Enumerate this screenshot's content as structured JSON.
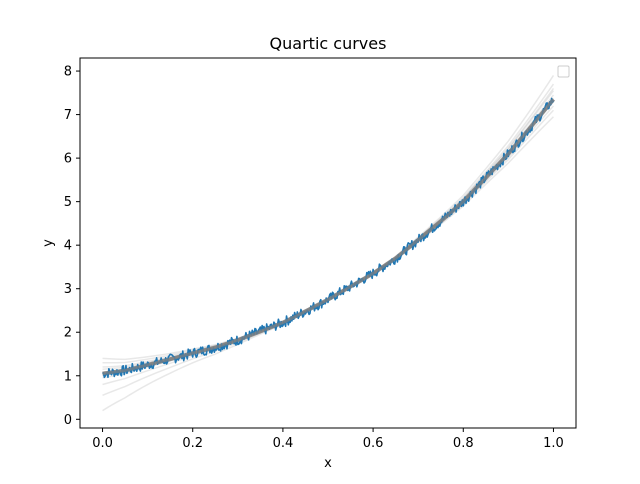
{
  "chart_data": {
    "type": "line",
    "title": "Quartic curves",
    "xlabel": "x",
    "ylabel": "y",
    "xlim": [
      -0.05,
      1.05
    ],
    "ylim": [
      -0.2,
      8.3
    ],
    "x_ticks": [
      0.0,
      0.2,
      0.4,
      0.6,
      0.8,
      1.0
    ],
    "x_tick_labels": [
      "0.0",
      "0.2",
      "0.4",
      "0.6",
      "0.8",
      "1.0"
    ],
    "y_ticks": [
      0,
      1,
      2,
      3,
      4,
      5,
      6,
      7,
      8
    ],
    "y_tick_labels": [
      "0",
      "1",
      "2",
      "3",
      "4",
      "5",
      "6",
      "7",
      "8"
    ],
    "grid": false,
    "legend": "upper-right (empty)",
    "colors": {
      "data_series": "#1f77b4",
      "fit_curves": "#808080"
    },
    "series": [
      {
        "x": [
          0.0,
          0.05,
          0.1,
          0.15,
          0.2,
          0.25,
          0.3,
          0.35,
          0.4,
          0.45,
          0.5,
          0.55,
          0.6,
          0.65,
          0.7,
          0.75,
          0.8,
          0.85,
          0.9,
          0.95,
          1.0
        ],
        "values": [
          1.05,
          1.12,
          1.25,
          1.38,
          1.52,
          1.65,
          1.82,
          2.02,
          2.22,
          2.48,
          2.75,
          3.05,
          3.35,
          3.7,
          4.12,
          4.55,
          5.0,
          5.55,
          6.1,
          6.72,
          7.35
        ],
        "noise": 0.12
      },
      {
        "curves": [
          {
            "values_at_0": 1.05,
            "values_at_1": 7.38
          },
          {
            "values_at_0": 1.15,
            "values_at_1": 7.45
          },
          {
            "values_at_0": 0.95,
            "values_at_1": 7.3
          },
          {
            "values_at_0": 1.3,
            "values_at_1": 7.55
          },
          {
            "values_at_0": 0.8,
            "values_at_1": 7.2
          },
          {
            "values_at_0": 1.4,
            "values_at_1": 7.7
          },
          {
            "values_at_0": 0.55,
            "values_at_1": 7.1
          },
          {
            "values_at_0": 0.2,
            "values_at_1": 6.95
          },
          {
            "values_at_0": 1.2,
            "values_at_1": 7.9
          },
          {
            "values_at_0": 1.0,
            "values_at_1": 7.6
          }
        ]
      }
    ]
  }
}
